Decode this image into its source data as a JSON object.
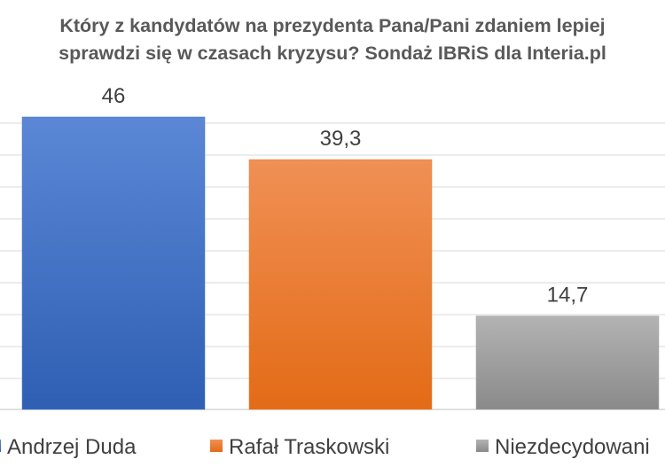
{
  "chart_data": {
    "type": "bar",
    "title_lines": [
      "Który z kandydatów na prezydenta Pana/Pani zdaniem lepiej",
      "sprawdzi się w czasach kryzysu? Sondaż IBRiS dla Interia.pl"
    ],
    "categories": [
      "Andrzej Duda",
      "Rafał Traskowski",
      "Niezdecydowani"
    ],
    "values": [
      46,
      39.3,
      14.7
    ],
    "value_labels": [
      "46",
      "39,3",
      "14,7"
    ],
    "colors": [
      "#4472c4",
      "#ed7d31",
      "#a5a5a5"
    ],
    "ylim": [
      0,
      46
    ],
    "grid": true,
    "legend_position": "bottom"
  }
}
